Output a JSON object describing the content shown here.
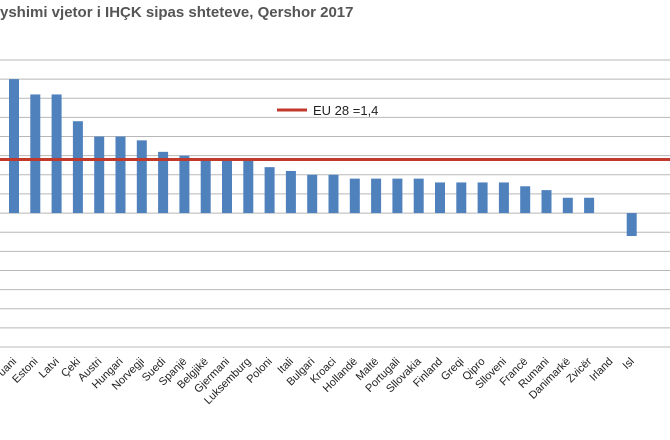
{
  "chart_data": {
    "type": "bar",
    "title": "yshimi vjetor i IHÇK sipas shteteve, Qershor 2017",
    "categories": [
      "uani",
      "Estoni",
      "Latvi",
      "Çeki",
      "Austri",
      "Hungari",
      "Norvegji",
      "Suedi",
      "Spanjë",
      "Belgjikë",
      "Gjermani",
      "Luksemburg",
      "Poloni",
      "Itali",
      "Bulgari",
      "Kroaci",
      "Hollandë",
      "Maltë",
      "Portugali",
      "Sllovakia",
      "Finland",
      "Greqi",
      "Qipro",
      "Slloveni",
      "Francë",
      "Rumani",
      "Danimarkë",
      "Zvicër",
      "Irland",
      "Isl"
    ],
    "values": [
      3.5,
      3.1,
      3.1,
      2.4,
      2.0,
      2.0,
      1.9,
      1.6,
      1.5,
      1.4,
      1.4,
      1.4,
      1.2,
      1.1,
      1.0,
      1.0,
      0.9,
      0.9,
      0.9,
      0.9,
      0.8,
      0.8,
      0.8,
      0.8,
      0.7,
      0.6,
      0.4,
      0.4,
      0.0,
      -0.6
    ],
    "reference_line": {
      "label": "EU 28 =1,4",
      "value": 1.4,
      "color": "#c0392b"
    },
    "ylim": [
      -3.5,
      4.0
    ],
    "grid": true,
    "bar_color": "#4f81bd",
    "legend_position": "top-center"
  }
}
